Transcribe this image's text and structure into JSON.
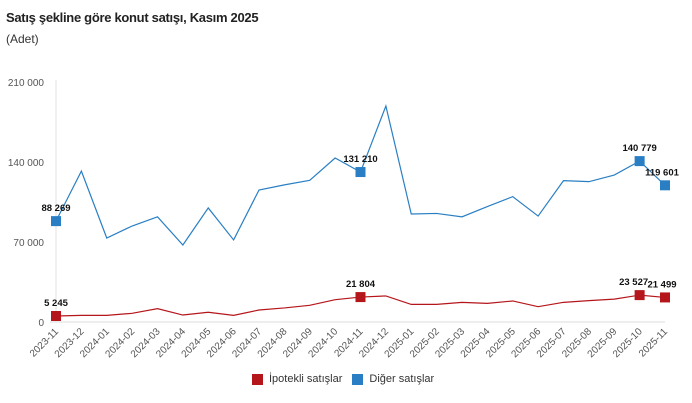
{
  "chart_data": {
    "type": "line",
    "title": "Satış şekline göre konut satışı, Kasım 2025",
    "subtitle": "(Adet)",
    "categories": [
      "2023-11",
      "2023-12",
      "2024-01",
      "2024-02",
      "2024-03",
      "2024-04",
      "2024-05",
      "2024-06",
      "2024-07",
      "2024-08",
      "2024-09",
      "2024-10",
      "2024-11",
      "2024-12",
      "2025-01",
      "2025-02",
      "2025-03",
      "2025-04",
      "2025-05",
      "2025-06",
      "2025-07",
      "2025-08",
      "2025-09",
      "2025-10",
      "2025-11"
    ],
    "series": [
      {
        "name": "İpotekli satışlar",
        "color": "#b5161b",
        "values": [
          5245,
          5800,
          5800,
          7600,
          11700,
          6100,
          8500,
          5800,
          10500,
          12300,
          14600,
          19500,
          21804,
          22800,
          15400,
          15400,
          17200,
          16300,
          18400,
          13400,
          17200,
          18700,
          20000,
          23527,
          21499
        ]
      },
      {
        "name": "Diğer satışlar",
        "color": "#2a7fc4",
        "values": [
          88269,
          132000,
          73500,
          84000,
          92000,
          67400,
          99800,
          71800,
          115500,
          120000,
          124000,
          143500,
          131210,
          189000,
          94500,
          95000,
          92000,
          101000,
          109700,
          92700,
          123700,
          122800,
          128600,
          140779,
          119601
        ]
      }
    ],
    "labeled_points": [
      "2023-11",
      "2024-11",
      "2025-10",
      "2025-11"
    ],
    "data_labels": {
      "İpotekli satışlar": [
        "5 245",
        "21 804",
        "23 527",
        "21 499"
      ],
      "Diğer satışlar": [
        "88 269",
        "131 210",
        "140 779",
        "119 601"
      ]
    },
    "yticks": [
      "0",
      "70 000",
      "140 000",
      "210 000"
    ],
    "ytick_values": [
      0,
      70000,
      140000,
      210000
    ],
    "ylim": [
      0,
      210000
    ],
    "grid": false,
    "legend_position": "bottom"
  }
}
